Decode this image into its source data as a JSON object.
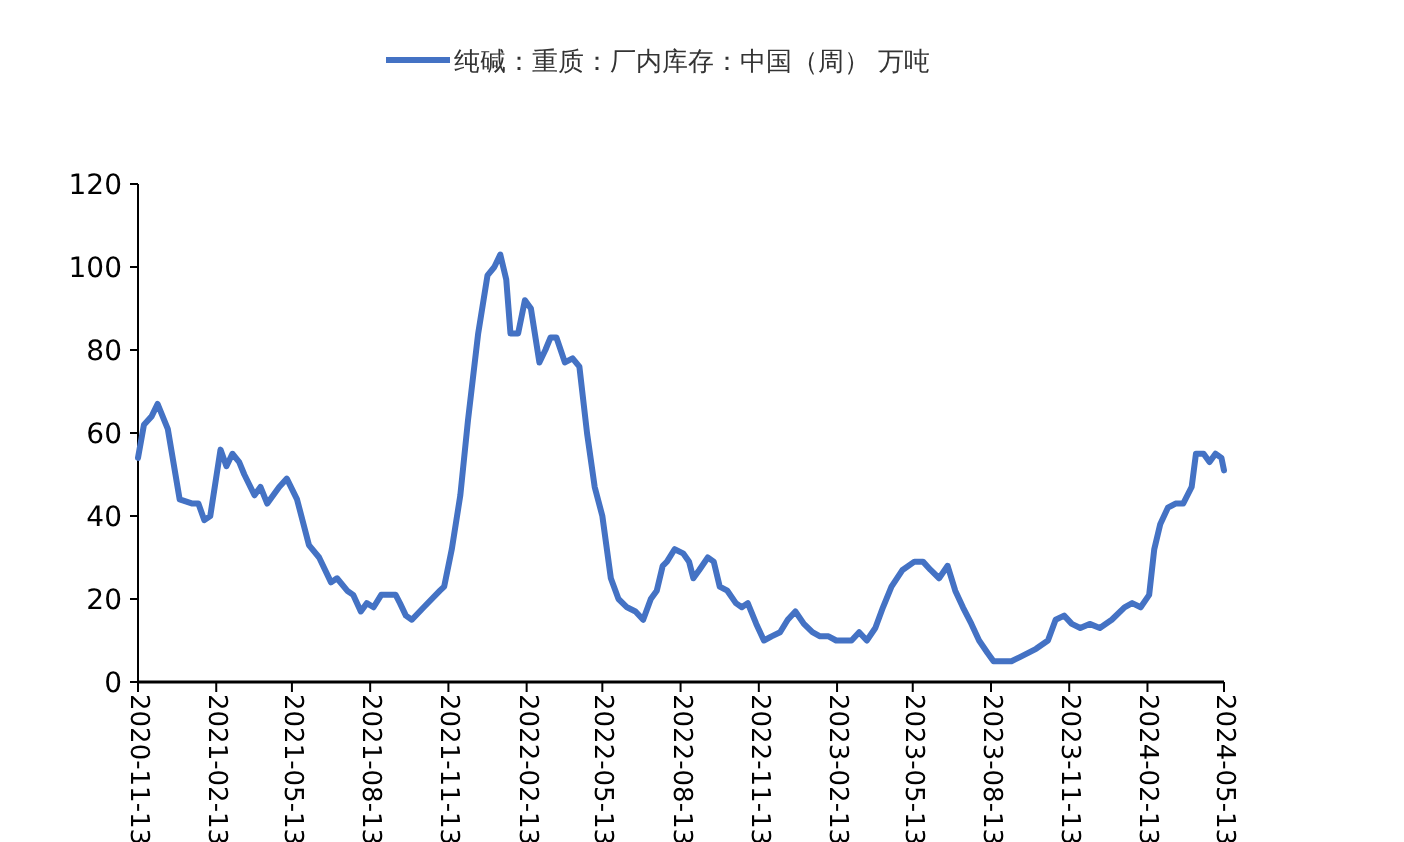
{
  "chart_data": {
    "type": "line",
    "legend": "top",
    "line_style": "solid",
    "xlim": [
      "2020-11-13",
      "2024-05-13"
    ],
    "xticks": [
      "2020-11-13",
      "2021-02-13",
      "2021-05-13",
      "2021-08-13",
      "2021-11-13",
      "2022-02-13",
      "2022-05-13",
      "2022-08-13",
      "2022-11-13",
      "2023-02-13",
      "2023-05-13",
      "2023-08-13",
      "2023-11-13",
      "2024-02-13",
      "2024-05-13"
    ],
    "ylim": [
      0,
      120
    ],
    "yticks": [
      0,
      20,
      40,
      60,
      80,
      100,
      120
    ],
    "series": [
      {
        "name": "纯碱：重质：厂内库存：中国（周） 万吨",
        "color": "#4472c4",
        "x": [
          "2020-11-13",
          "2020-11-20",
          "2020-11-29",
          "2020-12-06",
          "2020-12-18",
          "2021-01-01",
          "2021-01-16",
          "2021-01-23",
          "2021-01-30",
          "2021-02-06",
          "2021-02-18",
          "2021-02-25",
          "2021-03-04",
          "2021-03-12",
          "2021-03-18",
          "2021-03-30",
          "2021-04-06",
          "2021-04-14",
          "2021-04-28",
          "2021-05-07",
          "2021-05-19",
          "2021-06-02",
          "2021-06-14",
          "2021-06-28",
          "2021-07-05",
          "2021-07-17",
          "2021-07-24",
          "2021-08-02",
          "2021-08-09",
          "2021-08-17",
          "2021-08-26",
          "2021-09-04",
          "2021-09-12",
          "2021-09-17",
          "2021-09-24",
          "2021-10-01",
          "2021-10-15",
          "2021-11-03",
          "2021-11-08",
          "2021-11-17",
          "2021-11-27",
          "2021-12-06",
          "2021-12-18",
          "2021-12-29",
          "2022-01-06",
          "2022-01-13",
          "2022-01-20",
          "2022-01-25",
          "2022-02-03",
          "2022-02-11",
          "2022-02-18",
          "2022-02-28",
          "2022-03-07",
          "2022-03-13",
          "2022-03-20",
          "2022-03-30",
          "2022-04-08",
          "2022-04-16",
          "2022-04-25",
          "2022-05-04",
          "2022-05-13",
          "2022-05-23",
          "2022-06-01",
          "2022-06-11",
          "2022-06-21",
          "2022-06-30",
          "2022-07-09",
          "2022-07-16",
          "2022-07-23",
          "2022-07-28",
          "2022-08-06",
          "2022-08-16",
          "2022-08-23",
          "2022-08-28",
          "2022-09-04",
          "2022-09-14",
          "2022-09-21",
          "2022-09-28",
          "2022-10-07",
          "2022-10-17",
          "2022-10-24",
          "2022-10-31",
          "2022-11-10",
          "2022-11-19",
          "2022-11-28",
          "2022-12-08",
          "2022-12-17",
          "2022-12-26",
          "2023-01-05",
          "2023-01-15",
          "2023-01-24",
          "2023-02-03",
          "2023-02-12",
          "2023-02-21",
          "2023-03-02",
          "2023-03-11",
          "2023-03-20",
          "2023-03-30",
          "2023-04-08",
          "2023-04-18",
          "2023-05-01",
          "2023-05-15",
          "2023-05-25",
          "2023-06-03",
          "2023-06-13",
          "2023-06-23",
          "2023-07-02",
          "2023-07-11",
          "2023-07-21",
          "2023-07-30",
          "2023-08-09",
          "2023-08-16",
          "2023-08-28",
          "2023-09-06",
          "2023-09-16",
          "2023-10-05",
          "2023-10-19",
          "2023-10-28",
          "2023-11-07",
          "2023-11-16",
          "2023-11-26",
          "2023-12-07",
          "2023-12-19",
          "2024-01-02",
          "2024-01-17",
          "2024-01-26",
          "2024-02-05",
          "2024-02-15",
          "2024-02-21",
          "2024-02-28",
          "2024-03-08",
          "2024-03-17",
          "2024-03-26",
          "2024-04-05",
          "2024-04-10",
          "2024-04-19",
          "2024-04-26",
          "2024-05-03",
          "2024-05-10",
          "2024-05-13"
        ],
        "values": [
          54,
          62,
          64,
          67,
          61,
          44,
          43,
          43,
          39,
          40,
          56,
          52,
          55,
          53,
          50,
          45,
          47,
          43,
          47,
          49,
          44,
          33,
          30,
          24,
          25,
          22,
          21,
          17,
          19,
          18,
          21,
          21,
          21,
          19,
          16,
          15,
          18,
          22,
          23,
          32,
          45,
          63,
          84,
          98,
          100,
          103,
          97,
          84,
          84,
          92,
          90,
          77,
          80,
          83,
          83,
          77,
          78,
          76,
          60,
          47,
          40,
          25,
          20,
          18,
          17,
          15,
          20,
          22,
          28,
          29,
          32,
          31,
          29,
          25,
          27,
          30,
          29,
          23,
          22,
          19,
          18,
          19,
          14,
          10,
          11,
          12,
          15,
          17,
          14,
          12,
          11,
          11,
          10,
          10,
          10,
          12,
          10,
          13,
          18,
          23,
          27,
          29,
          29,
          27,
          25,
          28,
          22,
          18,
          14,
          10,
          7,
          5,
          5,
          5,
          6,
          8,
          10,
          15,
          16,
          14,
          13,
          14,
          13,
          15,
          18,
          19,
          18,
          21,
          32,
          38,
          42,
          43,
          43,
          47,
          55,
          55,
          53,
          55,
          54,
          51
        ]
      }
    ]
  }
}
